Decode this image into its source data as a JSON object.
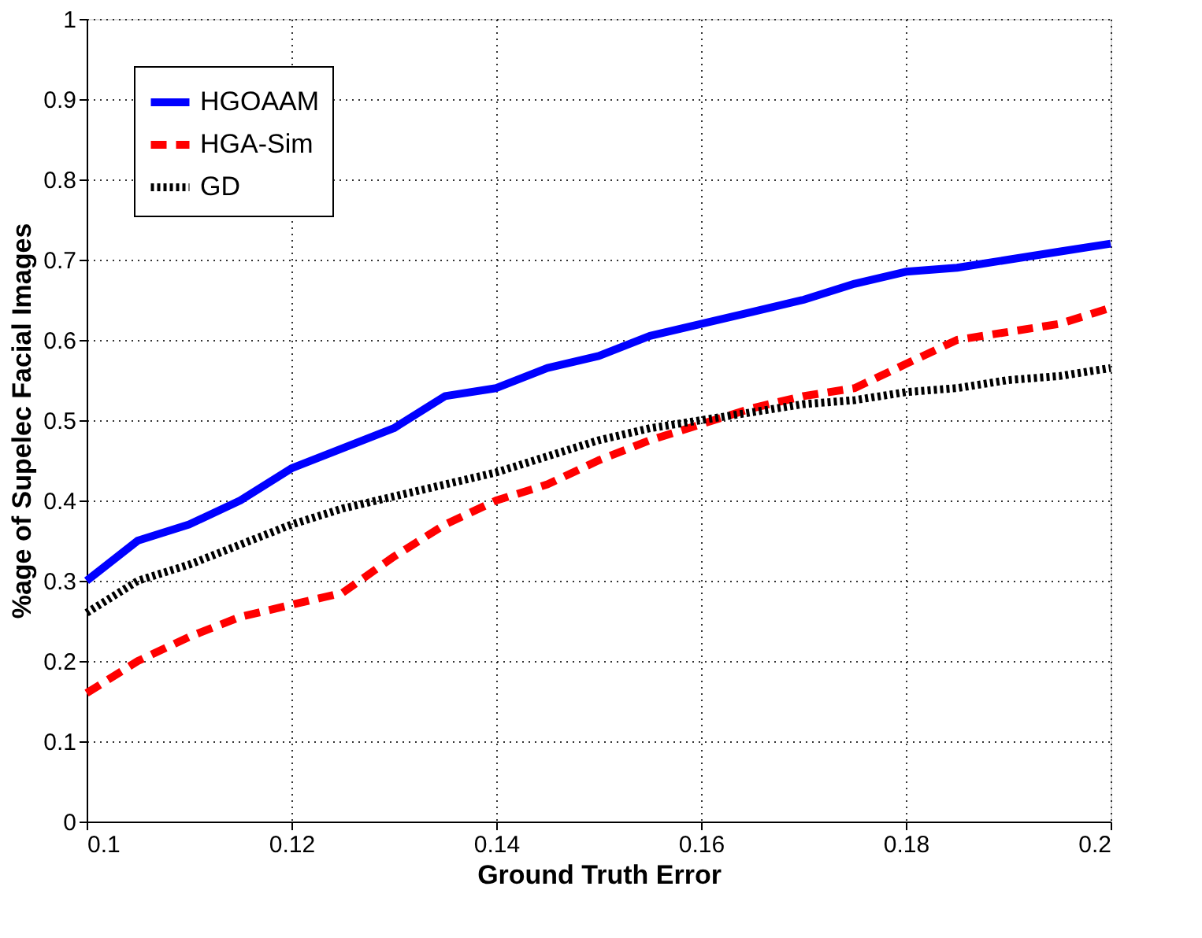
{
  "chart_data": {
    "type": "line",
    "xlabel": "Ground Truth Error",
    "ylabel": "%age of Supelec Facial Images",
    "x": [
      0.1,
      0.105,
      0.11,
      0.115,
      0.12,
      0.125,
      0.13,
      0.135,
      0.14,
      0.145,
      0.15,
      0.155,
      0.16,
      0.165,
      0.17,
      0.175,
      0.18,
      0.185,
      0.19,
      0.195,
      0.2
    ],
    "series": [
      {
        "name": "HGOAAM",
        "color": "#0000ff",
        "line_style": "solid",
        "values": [
          0.3,
          0.35,
          0.37,
          0.4,
          0.44,
          0.465,
          0.49,
          0.53,
          0.54,
          0.565,
          0.58,
          0.605,
          0.62,
          0.635,
          0.65,
          0.67,
          0.685,
          0.69,
          0.7,
          0.71,
          0.72
        ]
      },
      {
        "name": "HGA-Sim",
        "color": "#ff0000",
        "line_style": "dashed",
        "values": [
          0.16,
          0.2,
          0.23,
          0.255,
          0.27,
          0.285,
          0.33,
          0.37,
          0.4,
          0.42,
          0.45,
          0.475,
          0.495,
          0.515,
          0.53,
          0.54,
          0.57,
          0.6,
          0.61,
          0.62,
          0.64
        ]
      },
      {
        "name": "GD",
        "color": "#000000",
        "line_style": "dotted",
        "values": [
          0.26,
          0.3,
          0.32,
          0.345,
          0.37,
          0.39,
          0.405,
          0.42,
          0.435,
          0.455,
          0.475,
          0.49,
          0.5,
          0.51,
          0.52,
          0.525,
          0.535,
          0.54,
          0.55,
          0.555,
          0.565
        ]
      }
    ],
    "xlim": [
      0.1,
      0.2
    ],
    "xticks": [
      0.1,
      0.12,
      0.14,
      0.16,
      0.18,
      0.2
    ],
    "ylim": [
      0,
      1
    ],
    "yticks": [
      0,
      0.1,
      0.2,
      0.3,
      0.4,
      0.5,
      0.6,
      0.7,
      0.8,
      0.9,
      1
    ],
    "grid": true,
    "legend": "top left"
  }
}
